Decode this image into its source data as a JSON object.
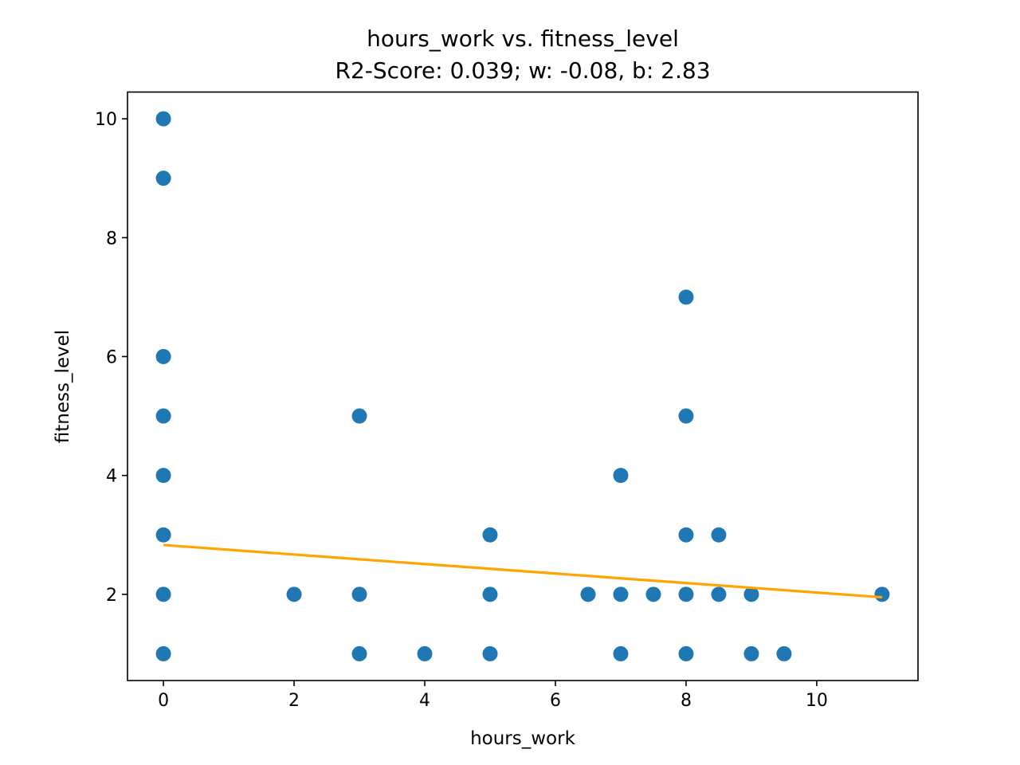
{
  "chart_data": {
    "type": "scatter",
    "title": "hours_work vs. fitness_level",
    "subtitle": "R2-Score: 0.039; w: -0.08, b: 2.83",
    "xlabel": "hours_work",
    "ylabel": "fitness_level",
    "xlim": [
      -0.55,
      11.55
    ],
    "ylim": [
      0.55,
      10.45
    ],
    "xticks": [
      0,
      2,
      4,
      6,
      8,
      10
    ],
    "yticks": [
      2,
      4,
      6,
      8,
      10
    ],
    "grid": false,
    "point_color": "#1f77b4",
    "line_color": "#ffa500",
    "points": [
      [
        0,
        10
      ],
      [
        0,
        9
      ],
      [
        0,
        6
      ],
      [
        0,
        5
      ],
      [
        0,
        4
      ],
      [
        0,
        3
      ],
      [
        0,
        2
      ],
      [
        0,
        1
      ],
      [
        2,
        2
      ],
      [
        3,
        5
      ],
      [
        3,
        2
      ],
      [
        3,
        1
      ],
      [
        4,
        1
      ],
      [
        5,
        3
      ],
      [
        5,
        2
      ],
      [
        5,
        1
      ],
      [
        6.5,
        2
      ],
      [
        7,
        4
      ],
      [
        7,
        2
      ],
      [
        7,
        1
      ],
      [
        7.5,
        2
      ],
      [
        8,
        7
      ],
      [
        8,
        5
      ],
      [
        8,
        3
      ],
      [
        8,
        2
      ],
      [
        8,
        1
      ],
      [
        8.5,
        3
      ],
      [
        8.5,
        2
      ],
      [
        9,
        2
      ],
      [
        9,
        1
      ],
      [
        9.5,
        1
      ],
      [
        11,
        2
      ]
    ],
    "fit_line": {
      "w": -0.08,
      "b": 2.83,
      "x_range": [
        0,
        11
      ]
    }
  }
}
